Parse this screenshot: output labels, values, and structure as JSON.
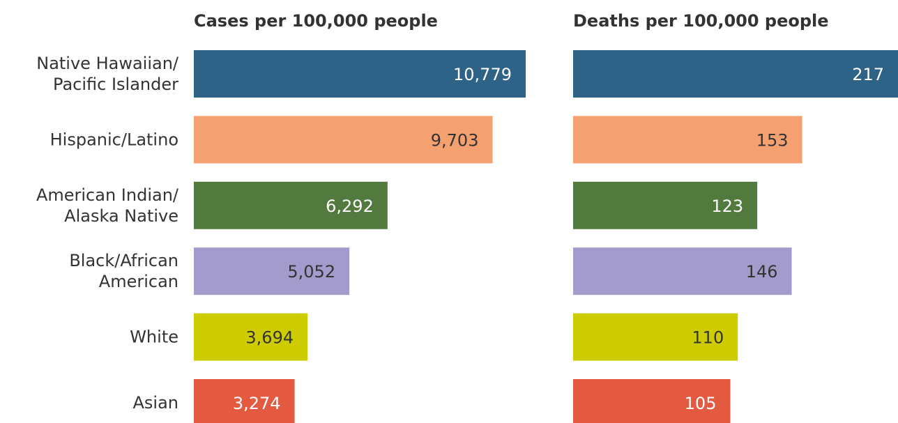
{
  "chart_data": {
    "type": "bar",
    "orientation": "horizontal",
    "categories": [
      [
        "Native Hawaiian/",
        "Pacific Islander"
      ],
      [
        "Hispanic/Latino"
      ],
      [
        "American Indian/",
        "Alaska Native"
      ],
      [
        "Black/African",
        "American"
      ],
      [
        "White"
      ],
      [
        "Asian"
      ]
    ],
    "colors": [
      "#2e6287",
      "#f4a070",
      "#527a3e",
      "#a39bcb",
      "#cccc00",
      "#e35a40"
    ],
    "panels": [
      {
        "title": "Cases per 100,000 people",
        "values": [
          10779,
          9703,
          6292,
          5052,
          3694,
          3274
        ],
        "labels": [
          "10,779",
          "9,703",
          "6,292",
          "5,052",
          "3,694",
          "3,274"
        ],
        "xlim": [
          0,
          10779
        ]
      },
      {
        "title": "Deaths per 100,000 people",
        "values": [
          217,
          153,
          123,
          146,
          110,
          105
        ],
        "labels": [
          "217",
          "153",
          "123",
          "146",
          "110",
          "105"
        ],
        "xlim": [
          0,
          217
        ]
      }
    ],
    "grid": false,
    "legend": "none"
  }
}
